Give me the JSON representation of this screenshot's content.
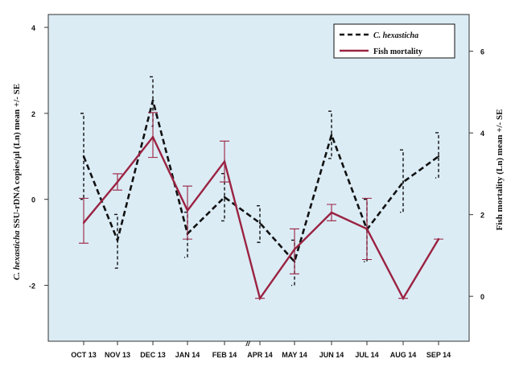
{
  "chart_data": {
    "type": "line",
    "categories": [
      "OCT 13",
      "NOV 13",
      "DEC 13",
      "JAN 14",
      "FEB 14",
      "APR 14",
      "MAY 14",
      "JUN 14",
      "JUL 14",
      "AUG 14",
      "SEP 14"
    ],
    "axis_break_marker": "//",
    "left_axis": {
      "label_italic": "C. hexasticha",
      "label_rest": " SSU-rDNA copies/µl (Ln) mean +/- SE",
      "ticks": [
        -2,
        0,
        2,
        4
      ],
      "ylim": [
        -3.3,
        4.3
      ]
    },
    "right_axis": {
      "label": "Fish mortality (Ln) mean +/- SE",
      "ticks": [
        0,
        2,
        4,
        6
      ],
      "ylim": [
        -1.1,
        6.9
      ]
    },
    "background_color": "#dbecf5",
    "series": [
      {
        "name": "C. hexasticha",
        "axis": "left",
        "color": "#111111",
        "style": "dashed",
        "values": [
          1.0,
          -0.95,
          2.3,
          -0.8,
          0.05,
          -0.55,
          -1.45,
          1.5,
          -0.7,
          0.4,
          1.0
        ],
        "err_low": [
          0.0,
          -1.6,
          1.7,
          -1.35,
          -0.5,
          -1.0,
          -2.0,
          0.95,
          -1.45,
          -0.3,
          0.5
        ],
        "err_high": [
          2.0,
          -0.35,
          2.85,
          -0.3,
          0.6,
          -0.15,
          -0.95,
          2.05,
          0.0,
          1.15,
          1.55
        ]
      },
      {
        "name": "Fish mortality",
        "axis": "right",
        "color": "#9b2342",
        "style": "solid",
        "values": [
          1.8,
          2.8,
          3.9,
          2.1,
          3.3,
          -0.05,
          1.15,
          2.05,
          1.65,
          -0.05,
          1.4
        ],
        "err_low": [
          1.3,
          2.6,
          3.4,
          1.4,
          2.8,
          -0.05,
          0.55,
          1.85,
          0.9,
          -0.05,
          1.4
        ],
        "err_high": [
          2.4,
          3.0,
          4.5,
          2.7,
          3.8,
          -0.05,
          1.65,
          2.25,
          2.4,
          -0.05,
          1.4
        ]
      }
    ],
    "legend_position": "top-right",
    "grid": false
  }
}
